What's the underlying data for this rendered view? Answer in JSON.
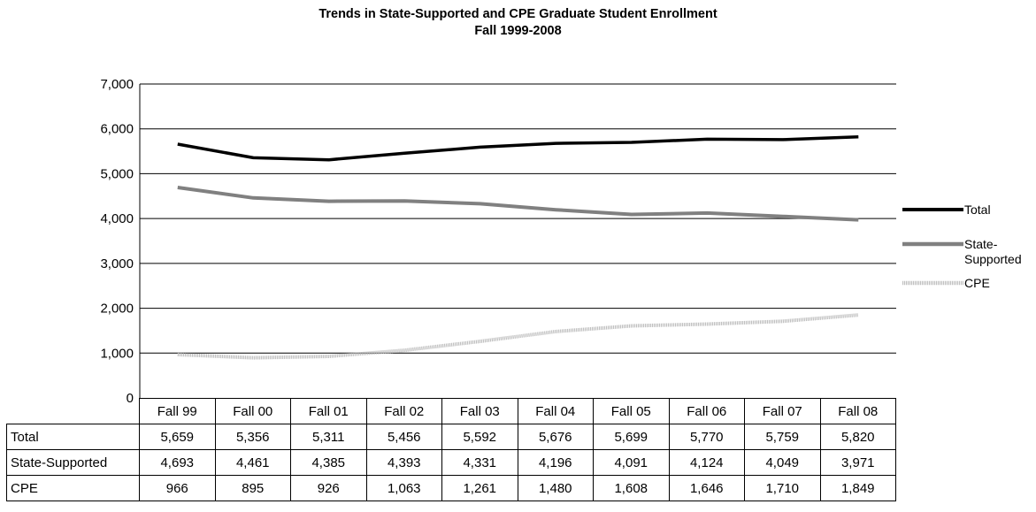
{
  "chart_data": {
    "type": "line",
    "title": "Trends in State-Supported and CPE Graduate Student Enrollment",
    "subtitle": "Fall 1999-2008",
    "categories": [
      "Fall 99",
      "Fall 00",
      "Fall 01",
      "Fall 02",
      "Fall 03",
      "Fall 04",
      "Fall 05",
      "Fall 06",
      "Fall 07",
      "Fall 08"
    ],
    "ylim": [
      0,
      7000
    ],
    "yticks": [
      "0",
      "1,000",
      "2,000",
      "3,000",
      "4,000",
      "5,000",
      "6,000",
      "7,000"
    ],
    "grid": true,
    "legend_position": "right",
    "series": [
      {
        "name": "Total",
        "color": "#000000",
        "values": [
          5659,
          5356,
          5311,
          5456,
          5592,
          5676,
          5699,
          5770,
          5759,
          5820
        ],
        "labels": [
          "5,659",
          "5,356",
          "5,311",
          "5,456",
          "5,592",
          "5,676",
          "5,699",
          "5,770",
          "5,759",
          "5,820"
        ]
      },
      {
        "name": "State-Supported",
        "legend_lines": [
          "State-",
          "Supported"
        ],
        "color": "#808080",
        "values": [
          4693,
          4461,
          4385,
          4393,
          4331,
          4196,
          4091,
          4124,
          4049,
          3971
        ],
        "labels": [
          "4,693",
          "4,461",
          "4,385",
          "4,393",
          "4,331",
          "4,196",
          "4,091",
          "4,124",
          "4,049",
          "3,971"
        ]
      },
      {
        "name": "CPE",
        "color": "#bfbfbf",
        "values": [
          966,
          895,
          926,
          1063,
          1261,
          1480,
          1608,
          1646,
          1710,
          1849
        ],
        "labels": [
          "966",
          "895",
          "926",
          "1,063",
          "1,261",
          "1,480",
          "1,608",
          "1,646",
          "1,710",
          "1,849"
        ]
      }
    ]
  }
}
